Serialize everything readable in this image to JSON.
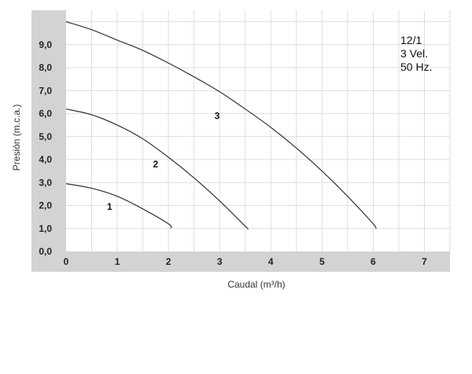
{
  "chart_data": {
    "type": "line",
    "title": "",
    "xlabel": "Caudal (m³/h)",
    "ylabel": "Presión (m.c.a.)",
    "xlim": [
      0,
      7.5
    ],
    "ylim": [
      0,
      10.5
    ],
    "x_ticks": [
      "0",
      "1",
      "2",
      "3",
      "4",
      "5",
      "6",
      "7"
    ],
    "y_ticks": [
      "0,0",
      "1,0",
      "2,0",
      "3,0",
      "4,0",
      "5,0",
      "6,0",
      "7,0",
      "8,0",
      "9,0"
    ],
    "grid": true,
    "annotation_lines": [
      "12/1",
      "3 Vel.",
      "50 Hz."
    ],
    "series": [
      {
        "name": "1",
        "x": [
          0,
          0.5,
          1.0,
          1.5,
          2.0,
          2.05
        ],
        "y": [
          2.95,
          2.75,
          2.4,
          1.85,
          1.2,
          1.0
        ],
        "label_at": [
          0.85,
          1.95
        ]
      },
      {
        "name": "2",
        "x": [
          0,
          0.5,
          1.0,
          1.5,
          2.0,
          2.5,
          3.0,
          3.5,
          3.55
        ],
        "y": [
          6.2,
          5.95,
          5.5,
          4.9,
          4.1,
          3.2,
          2.2,
          1.1,
          1.0
        ],
        "label_at": [
          1.75,
          3.8
        ]
      },
      {
        "name": "3",
        "x": [
          0,
          0.5,
          1.0,
          1.5,
          2.0,
          2.5,
          3.0,
          3.5,
          4.0,
          4.5,
          5.0,
          5.5,
          6.0,
          6.05
        ],
        "y": [
          10.0,
          9.65,
          9.2,
          8.75,
          8.2,
          7.6,
          6.95,
          6.2,
          5.4,
          4.5,
          3.5,
          2.4,
          1.2,
          1.0
        ],
        "label_at": [
          2.95,
          5.9
        ]
      }
    ]
  },
  "colors": {
    "panel_bg": "#d3d3d3",
    "plot_bg": "#ffffff",
    "grid": "#dedede",
    "curve": "#333333"
  }
}
